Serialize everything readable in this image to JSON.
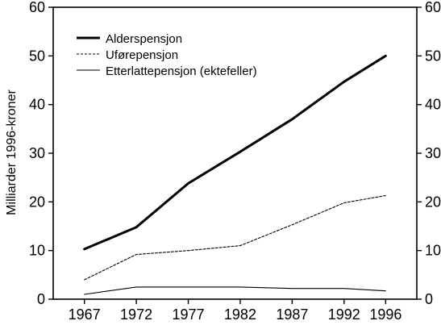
{
  "chart_data": {
    "type": "line",
    "x": [
      1967,
      1972,
      1977,
      1982,
      1987,
      1992,
      1996
    ],
    "xticks": [
      1967,
      1972,
      1977,
      1982,
      1987,
      1992,
      1996
    ],
    "xlim": [
      1964,
      1999
    ],
    "ylim": [
      0,
      60
    ],
    "yticks": [
      0,
      10,
      20,
      30,
      40,
      50,
      60
    ],
    "ylabel": "Milliarder 1996-kroner",
    "xlabel": "",
    "title": "",
    "grid": false,
    "legend_position": "top-left",
    "series": [
      {
        "name": "Alderspensjon",
        "style": "thick-solid",
        "color": "#000000",
        "values": [
          10.3,
          14.8,
          23.8,
          30.3,
          37.0,
          44.7,
          50.0
        ]
      },
      {
        "name": "Uførepensjon",
        "style": "dashed",
        "color": "#000000",
        "values": [
          4.0,
          9.2,
          10.0,
          11.0,
          15.3,
          19.8,
          21.3
        ]
      },
      {
        "name": "Etterlattepensjon (ektefeller)",
        "style": "thin-solid",
        "color": "#000000",
        "values": [
          1.0,
          2.5,
          2.5,
          2.5,
          2.2,
          2.2,
          1.7
        ]
      }
    ]
  }
}
